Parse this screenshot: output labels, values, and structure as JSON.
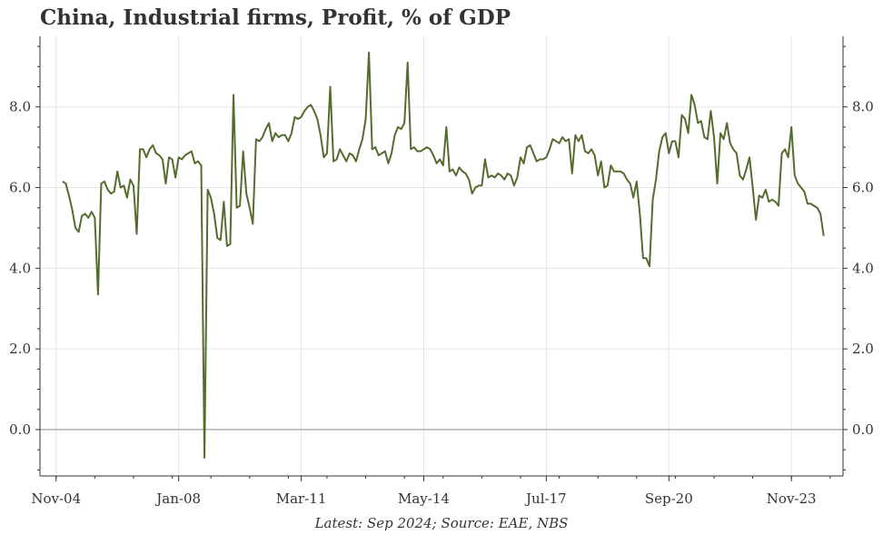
{
  "chart_data": {
    "type": "line",
    "title": "China, Industrial firms, Profit, % of GDP",
    "source_note": "Latest: Sep 2024; Source: EAE, NBS",
    "xlabel": "",
    "ylabel": "",
    "ylim": [
      -1.15,
      9.75
    ],
    "y_ticks": [
      0.0,
      2.0,
      4.0,
      6.0,
      8.0
    ],
    "y_tick_labels": [
      "0.0",
      "2.0",
      "4.0",
      "6.0",
      "8.0"
    ],
    "x_range": [
      "2004-06",
      "2025-03"
    ],
    "x_ticks": [
      "2004-11",
      "2008-01",
      "2011-03",
      "2014-05",
      "2017-07",
      "2020-09",
      "2023-11"
    ],
    "x_tick_labels": [
      "Nov-04",
      "Jan-08",
      "Mar-11",
      "May-14",
      "Jul-17",
      "Sep-20",
      "Nov-23"
    ],
    "axes": "left and right y axes, bottom x axis",
    "grid": true,
    "line_color": "#556b2f",
    "zero_line_color": "#999999",
    "series": [
      {
        "name": "",
        "points": [
          [
            "2005-01",
            6.15
          ],
          [
            "2005-02",
            6.1
          ],
          [
            "2005-03",
            5.8
          ],
          [
            "2005-04",
            5.45
          ],
          [
            "2005-05",
            5.0
          ],
          [
            "2005-06",
            4.9
          ],
          [
            "2005-07",
            5.3
          ],
          [
            "2005-08",
            5.35
          ],
          [
            "2005-09",
            5.25
          ],
          [
            "2005-10",
            5.4
          ],
          [
            "2005-11",
            5.25
          ],
          [
            "2005-12",
            3.35
          ],
          [
            "2006-01",
            6.1
          ],
          [
            "2006-02",
            6.15
          ],
          [
            "2006-03",
            5.95
          ],
          [
            "2006-04",
            5.85
          ],
          [
            "2006-05",
            5.9
          ],
          [
            "2006-06",
            6.4
          ],
          [
            "2006-07",
            6.0
          ],
          [
            "2006-08",
            6.05
          ],
          [
            "2006-09",
            5.75
          ],
          [
            "2006-10",
            6.2
          ],
          [
            "2006-11",
            6.05
          ],
          [
            "2006-12",
            4.85
          ],
          [
            "2007-01",
            6.95
          ],
          [
            "2007-02",
            6.95
          ],
          [
            "2007-03",
            6.75
          ],
          [
            "2007-04",
            6.95
          ],
          [
            "2007-05",
            7.05
          ],
          [
            "2007-06",
            6.85
          ],
          [
            "2007-07",
            6.8
          ],
          [
            "2007-08",
            6.7
          ],
          [
            "2007-09",
            6.1
          ],
          [
            "2007-10",
            6.75
          ],
          [
            "2007-11",
            6.7
          ],
          [
            "2007-12",
            6.25
          ],
          [
            "2008-01",
            6.75
          ],
          [
            "2008-02",
            6.7
          ],
          [
            "2008-03",
            6.8
          ],
          [
            "2008-04",
            6.85
          ],
          [
            "2008-05",
            6.9
          ],
          [
            "2008-06",
            6.6
          ],
          [
            "2008-07",
            6.65
          ],
          [
            "2008-08",
            6.55
          ],
          [
            "2008-09",
            -0.7
          ],
          [
            "2008-10",
            5.95
          ],
          [
            "2008-11",
            5.75
          ],
          [
            "2008-12",
            5.35
          ],
          [
            "2009-01",
            4.75
          ],
          [
            "2009-02",
            4.7
          ],
          [
            "2009-03",
            5.65
          ],
          [
            "2009-04",
            4.55
          ],
          [
            "2009-05",
            4.6
          ],
          [
            "2009-06",
            8.3
          ],
          [
            "2009-07",
            5.5
          ],
          [
            "2009-08",
            5.55
          ],
          [
            "2009-09",
            6.9
          ],
          [
            "2009-10",
            5.85
          ],
          [
            "2009-11",
            5.5
          ],
          [
            "2009-12",
            5.1
          ],
          [
            "2010-01",
            7.2
          ],
          [
            "2010-02",
            7.15
          ],
          [
            "2010-03",
            7.25
          ],
          [
            "2010-04",
            7.45
          ],
          [
            "2010-05",
            7.6
          ],
          [
            "2010-06",
            7.15
          ],
          [
            "2010-07",
            7.35
          ],
          [
            "2010-08",
            7.25
          ],
          [
            "2010-09",
            7.3
          ],
          [
            "2010-10",
            7.3
          ],
          [
            "2010-11",
            7.15
          ],
          [
            "2010-12",
            7.35
          ],
          [
            "2011-01",
            7.75
          ],
          [
            "2011-02",
            7.7
          ],
          [
            "2011-03",
            7.75
          ],
          [
            "2011-04",
            7.9
          ],
          [
            "2011-05",
            8.0
          ],
          [
            "2011-06",
            8.05
          ],
          [
            "2011-07",
            7.9
          ],
          [
            "2011-08",
            7.7
          ],
          [
            "2011-09",
            7.3
          ],
          [
            "2011-10",
            6.75
          ],
          [
            "2011-11",
            6.85
          ],
          [
            "2011-12",
            8.5
          ],
          [
            "2012-01",
            6.65
          ],
          [
            "2012-02",
            6.7
          ],
          [
            "2012-03",
            6.95
          ],
          [
            "2012-04",
            6.8
          ],
          [
            "2012-05",
            6.65
          ],
          [
            "2012-06",
            6.85
          ],
          [
            "2012-07",
            6.8
          ],
          [
            "2012-08",
            6.65
          ],
          [
            "2012-09",
            6.95
          ],
          [
            "2012-10",
            7.2
          ],
          [
            "2012-11",
            7.7
          ],
          [
            "2012-12",
            9.35
          ],
          [
            "2013-01",
            6.95
          ],
          [
            "2013-02",
            7.0
          ],
          [
            "2013-03",
            6.8
          ],
          [
            "2013-04",
            6.85
          ],
          [
            "2013-05",
            6.9
          ],
          [
            "2013-06",
            6.6
          ],
          [
            "2013-07",
            6.85
          ],
          [
            "2013-08",
            7.3
          ],
          [
            "2013-09",
            7.5
          ],
          [
            "2013-10",
            7.45
          ],
          [
            "2013-11",
            7.6
          ],
          [
            "2013-12",
            9.1
          ],
          [
            "2014-01",
            6.95
          ],
          [
            "2014-02",
            7.0
          ],
          [
            "2014-03",
            6.9
          ],
          [
            "2014-04",
            6.9
          ],
          [
            "2014-05",
            6.95
          ],
          [
            "2014-06",
            7.0
          ],
          [
            "2014-07",
            6.95
          ],
          [
            "2014-08",
            6.8
          ],
          [
            "2014-09",
            6.6
          ],
          [
            "2014-10",
            6.7
          ],
          [
            "2014-11",
            6.55
          ],
          [
            "2014-12",
            7.5
          ],
          [
            "2015-01",
            6.4
          ],
          [
            "2015-02",
            6.45
          ],
          [
            "2015-03",
            6.3
          ],
          [
            "2015-04",
            6.5
          ],
          [
            "2015-05",
            6.4
          ],
          [
            "2015-06",
            6.35
          ],
          [
            "2015-07",
            6.2
          ],
          [
            "2015-08",
            5.85
          ],
          [
            "2015-09",
            6.0
          ],
          [
            "2015-10",
            6.05
          ],
          [
            "2015-11",
            6.05
          ],
          [
            "2015-12",
            6.7
          ],
          [
            "2016-01",
            6.25
          ],
          [
            "2016-02",
            6.3
          ],
          [
            "2016-03",
            6.25
          ],
          [
            "2016-04",
            6.35
          ],
          [
            "2016-05",
            6.3
          ],
          [
            "2016-06",
            6.2
          ],
          [
            "2016-07",
            6.35
          ],
          [
            "2016-08",
            6.3
          ],
          [
            "2016-09",
            6.05
          ],
          [
            "2016-10",
            6.25
          ],
          [
            "2016-11",
            6.75
          ],
          [
            "2016-12",
            6.6
          ],
          [
            "2017-01",
            7.0
          ],
          [
            "2017-02",
            7.05
          ],
          [
            "2017-03",
            6.85
          ],
          [
            "2017-04",
            6.65
          ],
          [
            "2017-05",
            6.7
          ],
          [
            "2017-06",
            6.7
          ],
          [
            "2017-07",
            6.75
          ],
          [
            "2017-08",
            6.95
          ],
          [
            "2017-09",
            7.2
          ],
          [
            "2017-10",
            7.15
          ],
          [
            "2017-11",
            7.1
          ],
          [
            "2017-12",
            7.25
          ],
          [
            "2018-01",
            7.15
          ],
          [
            "2018-02",
            7.2
          ],
          [
            "2018-03",
            6.35
          ],
          [
            "2018-04",
            7.3
          ],
          [
            "2018-05",
            7.15
          ],
          [
            "2018-06",
            7.3
          ],
          [
            "2018-07",
            6.9
          ],
          [
            "2018-08",
            6.85
          ],
          [
            "2018-09",
            6.95
          ],
          [
            "2018-10",
            6.8
          ],
          [
            "2018-11",
            6.3
          ],
          [
            "2018-12",
            6.65
          ],
          [
            "2019-01",
            6.0
          ],
          [
            "2019-02",
            6.05
          ],
          [
            "2019-03",
            6.55
          ],
          [
            "2019-04",
            6.4
          ],
          [
            "2019-05",
            6.4
          ],
          [
            "2019-06",
            6.4
          ],
          [
            "2019-07",
            6.35
          ],
          [
            "2019-08",
            6.2
          ],
          [
            "2019-09",
            6.1
          ],
          [
            "2019-10",
            5.75
          ],
          [
            "2019-11",
            6.15
          ],
          [
            "2019-12",
            5.35
          ],
          [
            "2020-01",
            4.25
          ],
          [
            "2020-02",
            4.25
          ],
          [
            "2020-03",
            4.05
          ],
          [
            "2020-04",
            5.7
          ],
          [
            "2020-05",
            6.2
          ],
          [
            "2020-06",
            6.9
          ],
          [
            "2020-07",
            7.25
          ],
          [
            "2020-08",
            7.35
          ],
          [
            "2020-09",
            6.85
          ],
          [
            "2020-10",
            7.15
          ],
          [
            "2020-11",
            7.15
          ],
          [
            "2020-12",
            6.75
          ],
          [
            "2021-01",
            7.8
          ],
          [
            "2021-02",
            7.7
          ],
          [
            "2021-03",
            7.35
          ],
          [
            "2021-04",
            8.3
          ],
          [
            "2021-05",
            8.05
          ],
          [
            "2021-06",
            7.6
          ],
          [
            "2021-07",
            7.65
          ],
          [
            "2021-08",
            7.25
          ],
          [
            "2021-09",
            7.2
          ],
          [
            "2021-10",
            7.9
          ],
          [
            "2021-11",
            7.25
          ],
          [
            "2021-12",
            6.1
          ],
          [
            "2022-01",
            7.35
          ],
          [
            "2022-02",
            7.2
          ],
          [
            "2022-03",
            7.6
          ],
          [
            "2022-04",
            7.1
          ],
          [
            "2022-05",
            6.95
          ],
          [
            "2022-06",
            6.85
          ],
          [
            "2022-07",
            6.3
          ],
          [
            "2022-08",
            6.2
          ],
          [
            "2022-09",
            6.45
          ],
          [
            "2022-10",
            6.75
          ],
          [
            "2022-11",
            6.0
          ],
          [
            "2022-12",
            5.2
          ],
          [
            "2023-01",
            5.8
          ],
          [
            "2023-02",
            5.75
          ],
          [
            "2023-03",
            5.95
          ],
          [
            "2023-04",
            5.65
          ],
          [
            "2023-05",
            5.7
          ],
          [
            "2023-06",
            5.65
          ],
          [
            "2023-07",
            5.55
          ],
          [
            "2023-08",
            6.85
          ],
          [
            "2023-09",
            6.95
          ],
          [
            "2023-10",
            6.75
          ],
          [
            "2023-11",
            7.5
          ],
          [
            "2023-12",
            6.3
          ],
          [
            "2024-01",
            6.1
          ],
          [
            "2024-02",
            6.0
          ],
          [
            "2024-03",
            5.9
          ],
          [
            "2024-04",
            5.6
          ],
          [
            "2024-05",
            5.6
          ],
          [
            "2024-06",
            5.55
          ],
          [
            "2024-07",
            5.5
          ],
          [
            "2024-08",
            5.35
          ],
          [
            "2024-09",
            4.8
          ]
        ]
      }
    ]
  }
}
